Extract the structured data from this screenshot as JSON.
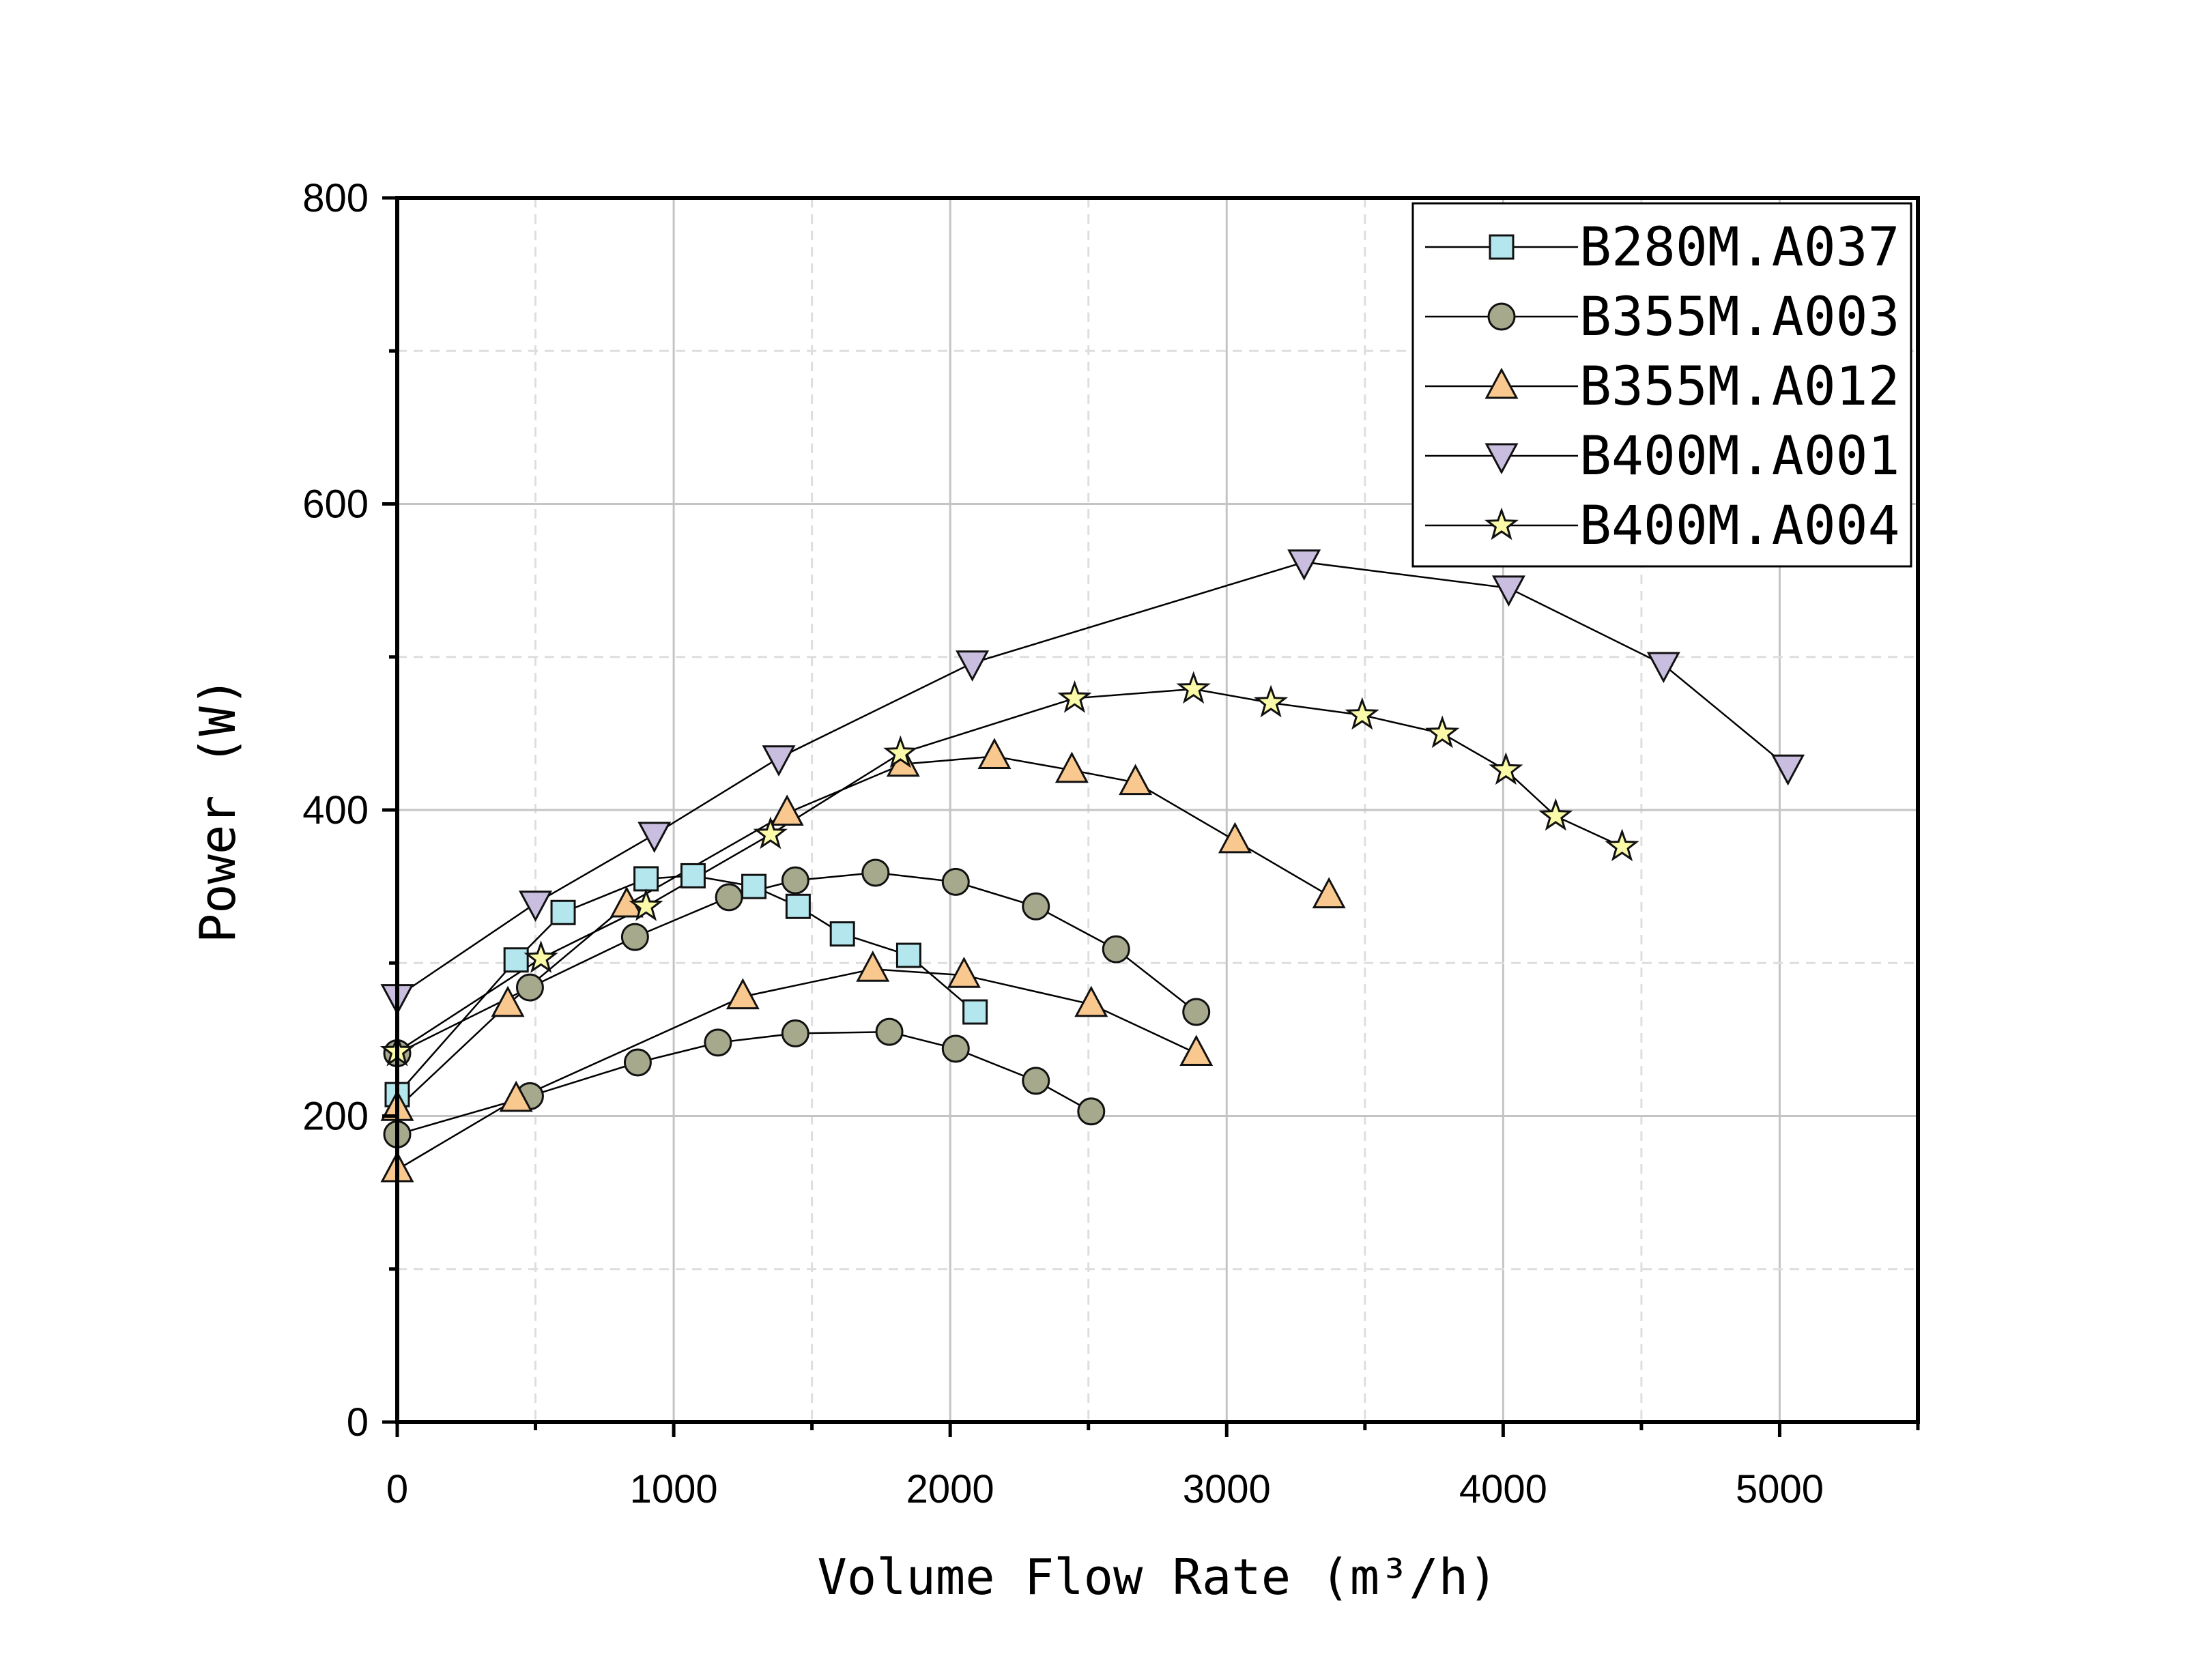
{
  "chart_data": {
    "type": "line",
    "xlabel": "Volume Flow Rate (m³/h)",
    "ylabel": "Power (W)",
    "xlim": [
      0,
      5500
    ],
    "ylim": [
      0,
      800
    ],
    "xticks": [
      "0",
      "1000",
      "2000",
      "3000",
      "4000",
      "5000"
    ],
    "yticks": [
      "0",
      "200",
      "400",
      "600",
      "800"
    ],
    "grid": true,
    "legend_position": "top-right",
    "series": [
      {
        "name": "B280M.A037",
        "marker": "square",
        "color": "#b4e6ee",
        "curves": [
          [
            [
              0,
              214
            ],
            [
              430,
              302
            ],
            [
              600,
              333
            ],
            [
              900,
              355
            ],
            [
              1070,
              357
            ],
            [
              1290,
              350
            ],
            [
              1450,
              337
            ],
            [
              1610,
              319
            ],
            [
              1850,
              305
            ],
            [
              2090,
              268
            ]
          ]
        ]
      },
      {
        "name": "B355M.A003",
        "marker": "circle",
        "color": "#a6a98c",
        "curves": [
          [
            [
              0,
              241
            ],
            [
              480,
              284
            ],
            [
              860,
              317
            ],
            [
              1200,
              343
            ],
            [
              1440,
              354
            ],
            [
              1730,
              359
            ],
            [
              2020,
              353
            ],
            [
              2310,
              337
            ],
            [
              2600,
              309
            ],
            [
              2890,
              268
            ]
          ],
          [
            [
              0,
              188
            ],
            [
              480,
              213
            ],
            [
              870,
              235
            ],
            [
              1160,
              248
            ],
            [
              1440,
              254
            ],
            [
              1780,
              255
            ],
            [
              2020,
              244
            ],
            [
              2310,
              223
            ],
            [
              2510,
              203
            ]
          ]
        ]
      },
      {
        "name": "B355M.A012",
        "marker": "triangle-up",
        "color": "#f8c88f",
        "curves": [
          [
            [
              0,
              205
            ],
            [
              400,
              273
            ],
            [
              830,
              338
            ],
            [
              1410,
              398
            ],
            [
              1830,
              430
            ],
            [
              2160,
              435
            ],
            [
              2440,
              426
            ],
            [
              2670,
              418
            ],
            [
              3030,
              380
            ],
            [
              3370,
              344
            ]
          ],
          [
            [
              0,
              165
            ],
            [
              430,
              211
            ],
            [
              1250,
              278
            ],
            [
              1720,
              296
            ],
            [
              2050,
              292
            ],
            [
              2510,
              273
            ],
            [
              2890,
              241
            ]
          ]
        ]
      },
      {
        "name": "B400M.A001",
        "marker": "triangle-down",
        "color": "#c9bde0",
        "curves": [
          [
            [
              0,
              278
            ],
            [
              500,
              339
            ],
            [
              930,
              384
            ],
            [
              1380,
              434
            ],
            [
              2080,
              496
            ],
            [
              3280,
              562
            ],
            [
              4020,
              545
            ],
            [
              4580,
              495
            ],
            [
              5030,
              428
            ]
          ]
        ]
      },
      {
        "name": "B400M.A004",
        "marker": "star",
        "color": "#fafaa8",
        "curves": [
          [
            [
              0,
              242
            ],
            [
              520,
              303
            ],
            [
              900,
              337
            ],
            [
              1350,
              384
            ],
            [
              1820,
              437
            ],
            [
              2450,
              473
            ],
            [
              2880,
              479
            ],
            [
              3160,
              470
            ],
            [
              3490,
              462
            ],
            [
              3780,
              450
            ],
            [
              4010,
              426
            ],
            [
              4190,
              396
            ],
            [
              4430,
              376
            ]
          ]
        ]
      }
    ]
  }
}
